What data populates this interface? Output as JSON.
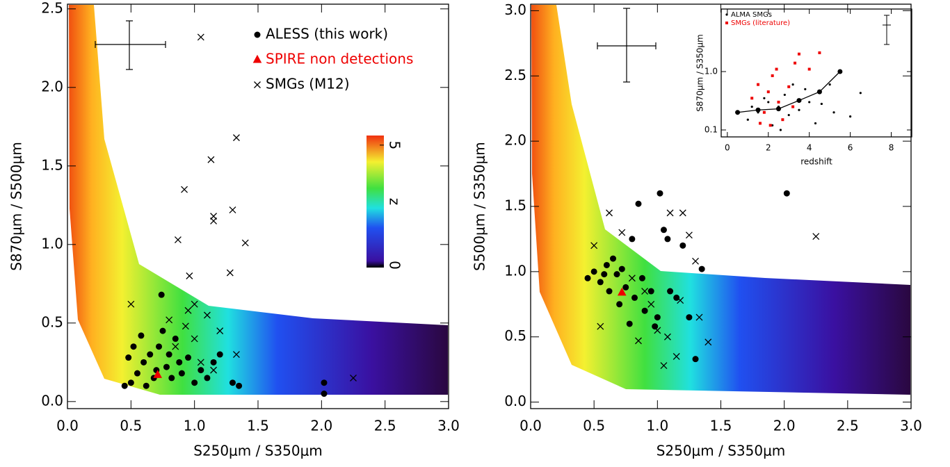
{
  "chart_data": [
    {
      "type": "scatter",
      "x_label": "S250μm / S350μm",
      "y_label": "S870μm / S500μm",
      "xlim": [
        0,
        3
      ],
      "ylim": [
        -0.045,
        2.53
      ],
      "xticks": [
        {
          "value": 0,
          "label": "0.0"
        },
        0.5,
        {
          "value": 1,
          "label": "1.0"
        },
        1.5,
        {
          "value": 2,
          "label": "2.0"
        },
        2.5,
        {
          "value": 3,
          "label": "3.0"
        }
      ],
      "yticks": [
        {
          "value": 0,
          "label": "0.0"
        },
        0.5,
        {
          "value": 1,
          "label": "1.0"
        },
        1.5,
        {
          "value": 2,
          "label": "2.0"
        },
        2.5
      ],
      "legend": "upper right",
      "colorbar": {
        "label": "z",
        "lim": [
          -0.1,
          5.4
        ],
        "ticks": [
          0,
          5
        ]
      },
      "series": [
        {
          "name": "ALESS (this work)",
          "color": "#000000",
          "marker": "circle",
          "x": [
            0.45,
            0.5,
            0.55,
            0.6,
            0.62,
            0.65,
            0.68,
            0.7,
            0.72,
            0.75,
            0.78,
            0.8,
            0.82,
            0.85,
            0.88,
            0.9,
            0.95,
            1.0,
            1.05,
            1.1,
            1.15,
            1.2,
            1.3,
            1.35,
            2.02,
            2.02,
            0.48,
            0.52,
            0.58,
            0.74
          ],
          "values": [
            0.1,
            0.12,
            0.18,
            0.25,
            0.1,
            0.3,
            0.15,
            0.2,
            0.35,
            0.45,
            0.22,
            0.3,
            0.15,
            0.4,
            0.25,
            0.18,
            0.28,
            0.12,
            0.2,
            0.15,
            0.25,
            0.3,
            0.12,
            0.1,
            0.12,
            0.05,
            0.28,
            0.35,
            0.42,
            0.68
          ]
        },
        {
          "name": "SPIRE non detections",
          "color": "#ee0000",
          "marker": "triangle",
          "x": [
            0.71
          ],
          "values": [
            0.17
          ]
        },
        {
          "name": "SMGs (M12)",
          "color": "#000000",
          "marker": "cross",
          "x": [
            0.5,
            1.05,
            1.33,
            1.13,
            0.92,
            1.15,
            1.15,
            1.3,
            1.4,
            0.87,
            1.28,
            1.0,
            0.95,
            1.1,
            0.93,
            1.2,
            1.33,
            1.0,
            1.15,
            2.25,
            0.8,
            0.85,
            1.05,
            0.96
          ],
          "values": [
            0.62,
            2.32,
            1.68,
            1.54,
            1.35,
            1.18,
            1.15,
            1.22,
            1.01,
            1.03,
            0.82,
            0.62,
            0.58,
            0.55,
            0.48,
            0.45,
            0.3,
            0.4,
            0.2,
            0.15,
            0.52,
            0.35,
            0.25,
            0.8
          ]
        }
      ]
    },
    {
      "type": "scatter",
      "x_label": "S250μm / S350μm",
      "y_label": "S500μm / S350μm",
      "xlim": [
        0,
        3
      ],
      "ylim": [
        -0.05,
        3.05
      ],
      "xticks": [
        {
          "value": 0,
          "label": "0.0"
        },
        0.5,
        {
          "value": 1,
          "label": "1.0"
        },
        1.5,
        {
          "value": 2,
          "label": "2.0"
        },
        2.5,
        {
          "value": 3,
          "label": "3.0"
        }
      ],
      "yticks": [
        {
          "value": 0,
          "label": "0.0"
        },
        0.5,
        {
          "value": 1,
          "label": "1.0"
        },
        1.5,
        {
          "value": 2,
          "label": "2.0"
        },
        2.5,
        {
          "value": 3,
          "label": "3.0"
        }
      ],
      "series": [
        {
          "color": "#000000",
          "marker": "circle",
          "x": [
            0.45,
            0.5,
            0.55,
            0.6,
            0.62,
            0.65,
            0.68,
            0.7,
            0.72,
            0.75,
            0.78,
            0.8,
            0.82,
            0.85,
            0.88,
            0.9,
            0.95,
            1.0,
            1.02,
            1.05,
            1.08,
            1.1,
            1.15,
            1.2,
            1.25,
            1.3,
            1.35,
            2.02,
            0.98,
            0.58
          ],
          "values": [
            0.95,
            1.0,
            0.92,
            1.05,
            0.85,
            1.1,
            0.98,
            0.75,
            1.02,
            0.88,
            0.6,
            1.25,
            0.8,
            1.52,
            0.95,
            0.7,
            0.85,
            0.65,
            1.6,
            1.32,
            1.25,
            0.85,
            0.8,
            1.2,
            0.65,
            0.33,
            1.02,
            1.6,
            0.58,
            0.98
          ]
        },
        {
          "color": "#ee0000",
          "marker": "triangle",
          "x": [
            0.72
          ],
          "values": [
            0.84
          ]
        },
        {
          "color": "#000000",
          "marker": "cross",
          "x": [
            0.5,
            0.55,
            0.62,
            0.72,
            0.8,
            0.9,
            0.95,
            1.0,
            1.05,
            1.1,
            1.15,
            1.2,
            1.25,
            1.3,
            1.33,
            1.4,
            2.25,
            0.85,
            1.08,
            1.18
          ],
          "values": [
            1.2,
            0.58,
            1.45,
            1.3,
            0.95,
            0.85,
            0.75,
            0.55,
            0.28,
            1.45,
            0.35,
            1.45,
            1.28,
            1.08,
            0.65,
            0.46,
            1.27,
            0.47,
            0.5,
            0.78
          ]
        }
      ]
    },
    {
      "type": "scatter",
      "x_label": "redshift",
      "y_label": "S870μm / S350μm",
      "xlim": [
        -0.3,
        9.0
      ],
      "ylim": [
        0.076,
        11.8
      ],
      "log_y": true,
      "xticks": [
        0,
        2,
        4,
        6,
        8
      ],
      "yticks": [
        0.1,
        {
          "value": 1,
          "label": "1.0"
        }
      ],
      "legend": "upper left",
      "series": [
        {
          "name": "ALMA SMGs",
          "color": "#000000",
          "marker": "dot",
          "x": [
            1.0,
            1.5,
            2.0,
            2.2,
            2.5,
            2.8,
            3.0,
            3.5,
            3.8,
            4.0,
            4.3,
            4.6,
            5.0,
            5.2,
            6.0,
            6.5,
            1.8,
            2.6,
            3.2,
            1.2
          ],
          "values": [
            0.15,
            0.2,
            0.3,
            0.12,
            0.25,
            0.4,
            0.18,
            0.22,
            0.5,
            0.3,
            0.13,
            0.28,
            0.6,
            0.2,
            0.17,
            0.43,
            0.35,
            0.1,
            0.6,
            0.25
          ]
        },
        {
          "name": "SMGs (literature)",
          "color": "#ee0000",
          "marker": "square",
          "x": [
            1.2,
            1.5,
            1.8,
            2.0,
            2.2,
            2.4,
            2.5,
            2.7,
            3.0,
            3.2,
            3.3,
            3.5,
            4.0,
            4.5,
            2.1,
            1.6
          ],
          "values": [
            0.35,
            0.6,
            0.2,
            0.45,
            0.85,
            1.1,
            0.3,
            0.15,
            0.55,
            0.25,
            1.4,
            2.0,
            1.1,
            2.1,
            0.12,
            0.13
          ]
        },
        {
          "color": "#000000",
          "marker": "circle",
          "line": true,
          "x": [
            0.5,
            1.5,
            2.5,
            3.5,
            4.5,
            5.5
          ],
          "values": [
            0.2,
            0.22,
            0.23,
            0.32,
            0.45,
            1.0
          ]
        }
      ]
    }
  ]
}
